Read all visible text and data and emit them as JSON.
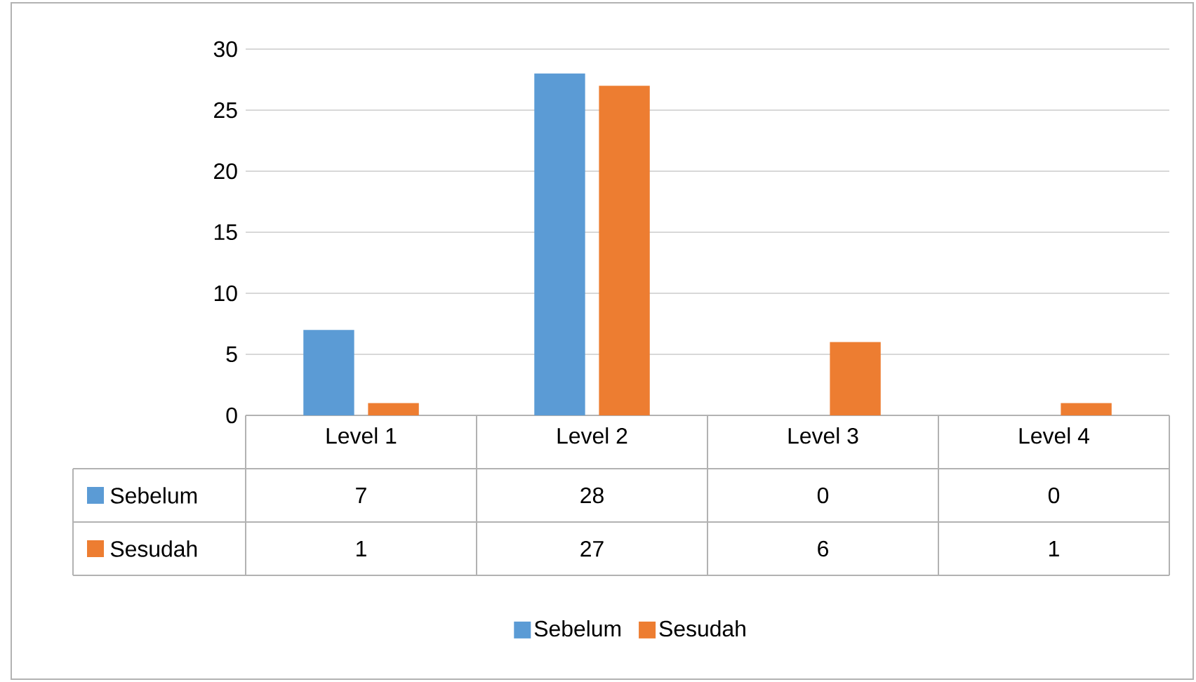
{
  "chart_data": {
    "type": "bar",
    "categories": [
      "Level 1",
      "Level 2",
      "Level 3",
      "Level 4"
    ],
    "series": [
      {
        "name": "Sebelum",
        "color": "#5b9bd5",
        "values": [
          7,
          28,
          0,
          0
        ],
        "value_labels": [
          "7",
          "28",
          "0",
          "0"
        ]
      },
      {
        "name": "Sesudah",
        "color": "#ed7d31",
        "values": [
          1,
          27,
          6,
          1
        ],
        "value_labels": [
          "1",
          "27",
          "6",
          "1"
        ]
      }
    ],
    "ylim": [
      0,
      30
    ],
    "yticks": [
      0,
      5,
      10,
      15,
      20,
      25,
      30
    ],
    "grid": "y",
    "legend": "bottom"
  }
}
